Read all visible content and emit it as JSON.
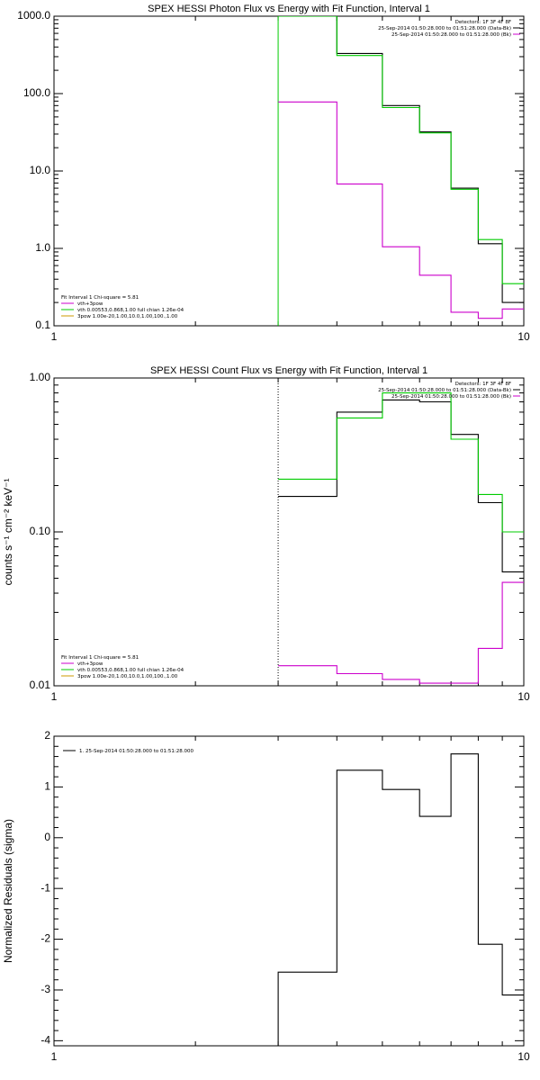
{
  "chart_data": [
    {
      "type": "line",
      "title": "SPEX HESSI Photon Flux vs Energy with Fit Function, Interval 1",
      "xscale": "log",
      "yscale": "log",
      "xlim": [
        1,
        10
      ],
      "ylim": [
        0.1,
        1000
      ],
      "xticks": [
        {
          "v": 1,
          "label": "1"
        },
        {
          "v": 10,
          "label": "10"
        }
      ],
      "yticks": [
        {
          "v": 1000,
          "label": "1000.0"
        },
        {
          "v": 100,
          "label": "100.0"
        },
        {
          "v": 10,
          "label": "10.0"
        },
        {
          "v": 1,
          "label": "1.0"
        },
        {
          "v": 0.1,
          "label": "0.1"
        }
      ],
      "edges": [
        3,
        4,
        5,
        6,
        7,
        8,
        9,
        10
      ],
      "series": [
        {
          "name": "25-Sep-2014 01:50:28.000 to 01:51:28.000 (Data-Bk)",
          "color": "#000000",
          "values": [
            1000,
            330,
            70,
            32,
            6,
            1.15,
            0.2
          ]
        },
        {
          "name": "vth+3pow",
          "color": "#00cc00",
          "values": [
            1000,
            310,
            66,
            31,
            5.8,
            1.3,
            0.35
          ]
        },
        {
          "name": "25-Sep-2014 01:50:28.000 to 01:51:28.000 (Bk)",
          "color": "#cc00cc",
          "values": [
            78,
            6.8,
            1.05,
            0.45,
            0.15,
            0.125,
            0.165
          ]
        }
      ],
      "vline": {
        "x": 3,
        "color": "#00cc00"
      },
      "legend_tr": [
        {
          "text": "Detectors: 1F 3F 4F 8F",
          "color": "#000000"
        },
        {
          "text": "25-Sep-2014 01:50:28.000 to 01:51:28.000 (Data-Bk)",
          "color": "#000000"
        },
        {
          "text": "25-Sep-2014 01:50:28.000 to 01:51:28.000 (Bk)",
          "color": "#cc00cc"
        }
      ],
      "legend_bl": [
        {
          "text": "Fit Interval 1    Chi-square = 5.81",
          "color": "#000000"
        },
        {
          "text": "vth+3pow",
          "color": "#cc00cc"
        },
        {
          "text": "vth 0.00553,0.868,1.00   full chian 1.26e-04",
          "color": "#00cc00"
        },
        {
          "text": "3pow 1.00e-20,1.00,10.0,1.00,100.,1.00",
          "color": "#cc9900"
        }
      ]
    },
    {
      "type": "line",
      "title": "SPEX HESSI Count Flux vs Energy with Fit Function, Interval 1",
      "ylabel": "counts s⁻¹ cm⁻² keV⁻¹",
      "xscale": "log",
      "yscale": "log",
      "xlim": [
        1,
        10
      ],
      "ylim": [
        0.01,
        1.0
      ],
      "xticks": [
        {
          "v": 1,
          "label": "1"
        },
        {
          "v": 10,
          "label": "10"
        }
      ],
      "yticks": [
        {
          "v": 1,
          "label": "1.00"
        },
        {
          "v": 0.1,
          "label": "0.10"
        },
        {
          "v": 0.01,
          "label": "0.01"
        }
      ],
      "edges": [
        3,
        4,
        5,
        6,
        7,
        8,
        9,
        10
      ],
      "series": [
        {
          "name": "25-Sep-2014 01:50:28.000 to 01:51:28.000 (Data-Bk)",
          "color": "#000000",
          "values": [
            0.17,
            0.6,
            0.72,
            0.7,
            0.43,
            0.155,
            0.055
          ]
        },
        {
          "name": "vth+3pow",
          "color": "#00cc00",
          "values": [
            0.22,
            0.55,
            0.8,
            0.8,
            0.4,
            0.175,
            0.1
          ]
        },
        {
          "name": "25-Sep-2014 01:50:28.000 to 01:51:28.000 (Bk)",
          "color": "#cc00cc",
          "values": [
            0.0135,
            0.012,
            0.011,
            0.0104,
            0.0104,
            0.0175,
            0.047
          ]
        }
      ],
      "vline": {
        "x": 3,
        "color": "#000000",
        "dotted": true
      },
      "legend_tr": [
        {
          "text": "Detectors: 1F 3F 4F 8F",
          "color": "#000000"
        },
        {
          "text": "25-Sep-2014 01:50:28.000 to 01:51:28.000 (Data-Bk)",
          "color": "#000000"
        },
        {
          "text": "25-Sep-2014 01:50:28.000 to 01:51:28.000 (Bk)",
          "color": "#cc00cc"
        }
      ],
      "legend_bl": [
        {
          "text": "Fit Interval 1    Chi-square = 5.81",
          "color": "#000000"
        },
        {
          "text": "vth+3pow",
          "color": "#cc00cc"
        },
        {
          "text": "vth 0.00553,0.868,1.00   full chian 1.26e-04",
          "color": "#00cc00"
        },
        {
          "text": "3pow 1.00e-20,1.00,10.0,1.00,100.,1.00",
          "color": "#cc9900"
        }
      ]
    },
    {
      "type": "line",
      "title": "",
      "ylabel": "Normalized Residuals (sigma)",
      "xscale": "log",
      "yscale": "linear",
      "xlim": [
        1,
        10
      ],
      "ylim": [
        -4.1,
        2
      ],
      "xticks": [
        {
          "v": 1,
          "label": "1"
        },
        {
          "v": 10,
          "label": "10"
        }
      ],
      "yticks": [
        {
          "v": 2,
          "label": "2"
        },
        {
          "v": 1,
          "label": "1"
        },
        {
          "v": 0,
          "label": "0"
        },
        {
          "v": -1,
          "label": "-1"
        },
        {
          "v": -2,
          "label": "-2"
        },
        {
          "v": -3,
          "label": "-3"
        },
        {
          "v": -4,
          "label": "-4"
        }
      ],
      "edges": [
        3,
        4,
        5,
        6,
        7,
        8,
        9,
        10
      ],
      "series": [
        {
          "name": "1. 25-Sep-2014 01:50:28.000 to 01:51:28.000",
          "color": "#000000",
          "values": [
            -2.65,
            1.33,
            0.95,
            0.42,
            1.65,
            -2.1,
            -3.1
          ]
        }
      ],
      "drop_first_to_bottom": true,
      "legend_tl": [
        {
          "text": "1. 25-Sep-2014 01:50:28.000 to 01:51:28.000",
          "color": "#000000"
        }
      ]
    }
  ]
}
